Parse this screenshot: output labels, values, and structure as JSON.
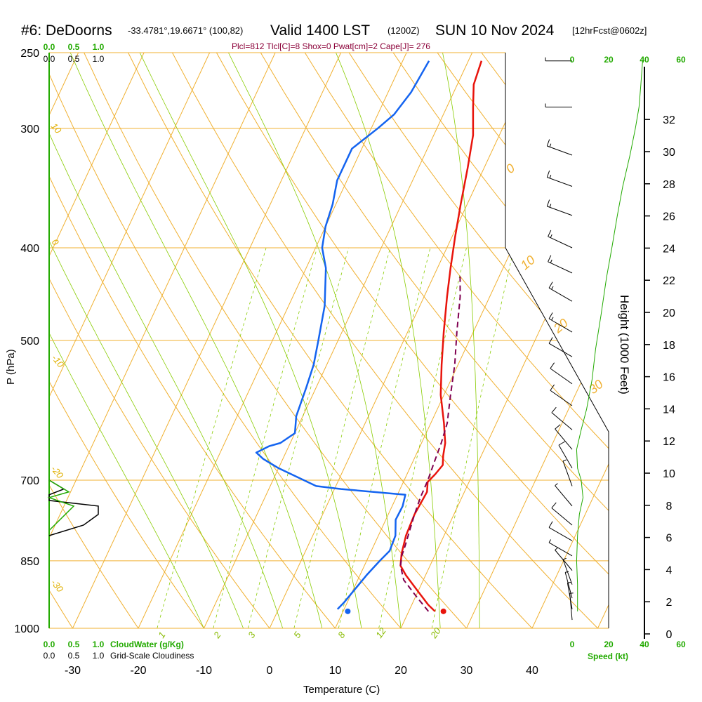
{
  "header": {
    "station": "#6: DeDoorns",
    "coords": "-33.4781°,19.6671° (100,82)",
    "valid": "Valid 1400 LST",
    "utc": "(1200Z)",
    "date": "SUN 10 Nov 2024",
    "fcst": "[12hrFcst@0602z]",
    "indices": "Plcl=812 Tlcl[C]=8 Shox=0 Pwat[cm]=2 Cape[J]= 276"
  },
  "axes": {
    "xlabel": "Temperature (C)",
    "ylabel": "P (hPa)",
    "right_label": "Height (1000 Feet)",
    "speed_label": "Speed (kt)",
    "cloudwater_label": "CloudWater (g/Kg)",
    "cloudiness_label": "Grid-Scale Cloudiness"
  },
  "colors": {
    "temperature": "#e8140c",
    "dewpoint": "#1464f0",
    "parcel": "#800050",
    "isotherm": "#f0b030",
    "mixing": "#88cc00",
    "height_profile": "#22aa00",
    "cloudwater": "#22aa00",
    "cloudiness": "#000000"
  },
  "chart_data": {
    "type": "line",
    "skew_t": true,
    "xlim": [
      -34,
      36
    ],
    "pressure_range": [
      1000,
      250
    ],
    "x_ticks": [
      "-30",
      "-20",
      "-10",
      "0",
      "10",
      "20",
      "30",
      "40"
    ],
    "x_tick_values": [
      -30,
      -20,
      -10,
      0,
      10,
      20,
      30,
      40
    ],
    "p_ticks": [
      "250",
      "300",
      "400",
      "500",
      "700",
      "850",
      "1000"
    ],
    "p_tick_values": [
      250,
      300,
      400,
      500,
      700,
      850,
      1000
    ],
    "height_ticks": [
      "0",
      "2",
      "4",
      "6",
      "8",
      "10",
      "12",
      "14",
      "16",
      "18",
      "20",
      "22",
      "24",
      "26",
      "28",
      "30",
      "32"
    ],
    "height_tick_values": [
      0,
      2,
      4,
      6,
      8,
      10,
      12,
      14,
      16,
      18,
      20,
      22,
      24,
      26,
      28,
      30,
      32
    ],
    "isotherm_labels": [
      "10",
      "20",
      "30",
      "0",
      "-10",
      "-20",
      "-30"
    ],
    "dry_adiabat_labels": [
      "10",
      "0",
      "-10",
      "-20",
      "-30"
    ],
    "mixing_ratio_labels": [
      "1",
      "2",
      "3",
      "5",
      "8",
      "12",
      "20"
    ],
    "series": [
      {
        "name": "Temperature",
        "points": [
          [
            24.0,
            960
          ],
          [
            22.5,
            945
          ],
          [
            20.0,
            915
          ],
          [
            17.0,
            880
          ],
          [
            15.5,
            860
          ],
          [
            14.8,
            835
          ],
          [
            14.2,
            800
          ],
          [
            14.0,
            760
          ],
          [
            14.3,
            720
          ],
          [
            13.7,
            703
          ],
          [
            14.3,
            690
          ],
          [
            14.8,
            675
          ],
          [
            14.2,
            660
          ],
          [
            13.6,
            640
          ],
          [
            12.0,
            610
          ],
          [
            9.5,
            570
          ],
          [
            7.5,
            530
          ],
          [
            5.5,
            490
          ],
          [
            3.5,
            450
          ],
          [
            2.0,
            420
          ],
          [
            0.5,
            390
          ],
          [
            -1.0,
            360
          ],
          [
            -2.5,
            330
          ],
          [
            -4.0,
            305
          ],
          [
            -6.0,
            285
          ],
          [
            -7.5,
            270
          ],
          [
            -8.0,
            255
          ]
        ]
      },
      {
        "name": "Dewpoint",
        "points": [
          [
            9.0,
            955
          ],
          [
            9.5,
            940
          ],
          [
            11.0,
            880
          ],
          [
            12.0,
            850
          ],
          [
            12.8,
            830
          ],
          [
            12.6,
            800
          ],
          [
            11.5,
            770
          ],
          [
            11.6,
            745
          ],
          [
            11.2,
            725
          ],
          [
            1.0,
            715
          ],
          [
            -3.0,
            710
          ],
          [
            -10.0,
            680
          ],
          [
            -13.0,
            665
          ],
          [
            -14.5,
            655
          ],
          [
            -13.0,
            645
          ],
          [
            -11.5,
            640
          ],
          [
            -10.0,
            625
          ],
          [
            -11.0,
            600
          ],
          [
            -11.5,
            560
          ],
          [
            -12.0,
            530
          ],
          [
            -13.0,
            500
          ],
          [
            -14.5,
            460
          ],
          [
            -17.0,
            420
          ],
          [
            -19.0,
            400
          ],
          [
            -20.0,
            380
          ],
          [
            -20.5,
            360
          ],
          [
            -21.5,
            340
          ],
          [
            -21.5,
            315
          ],
          [
            -19.0,
            300
          ],
          [
            -17.5,
            290
          ],
          [
            -16.5,
            275
          ],
          [
            -16.0,
            255
          ]
        ]
      },
      {
        "name": "Parcel",
        "points": [
          [
            23.0,
            960
          ],
          [
            20.0,
            925
          ],
          [
            17.0,
            890
          ],
          [
            15.5,
            860
          ],
          [
            15.0,
            840
          ],
          [
            14.8,
            820
          ],
          [
            14.4,
            790
          ],
          [
            14.0,
            760
          ],
          [
            13.7,
            730
          ],
          [
            13.6,
            700
          ],
          [
            13.3,
            670
          ],
          [
            13.0,
            640
          ],
          [
            12.5,
            610
          ],
          [
            11.0,
            570
          ],
          [
            9.5,
            530
          ],
          [
            7.5,
            490
          ],
          [
            5.5,
            450
          ],
          [
            3.8,
            425
          ]
        ]
      }
    ],
    "surface_temperature": 24.0,
    "surface_dewpoint": 9.0,
    "surface_pressure": 960,
    "wind_barbs": [
      {
        "p": 255,
        "speed": 5,
        "dir": 270
      },
      {
        "p": 285,
        "speed": 5,
        "dir": 270
      },
      {
        "p": 320,
        "speed": 15,
        "dir": 290
      },
      {
        "p": 345,
        "speed": 15,
        "dir": 290
      },
      {
        "p": 370,
        "speed": 15,
        "dir": 290
      },
      {
        "p": 400,
        "speed": 15,
        "dir": 295
      },
      {
        "p": 425,
        "speed": 15,
        "dir": 295
      },
      {
        "p": 455,
        "speed": 15,
        "dir": 300
      },
      {
        "p": 490,
        "speed": 15,
        "dir": 300
      },
      {
        "p": 520,
        "speed": 10,
        "dir": 300
      },
      {
        "p": 555,
        "speed": 10,
        "dir": 305
      },
      {
        "p": 585,
        "speed": 10,
        "dir": 305
      },
      {
        "p": 620,
        "speed": 10,
        "dir": 310
      },
      {
        "p": 650,
        "speed": 10,
        "dir": 320
      },
      {
        "p": 680,
        "speed": 10,
        "dir": 330
      },
      {
        "p": 710,
        "speed": 5,
        "dir": 340
      },
      {
        "p": 745,
        "speed": 5,
        "dir": 320
      },
      {
        "p": 780,
        "speed": 10,
        "dir": 310
      },
      {
        "p": 810,
        "speed": 10,
        "dir": 300
      },
      {
        "p": 840,
        "speed": 5,
        "dir": 300
      },
      {
        "p": 870,
        "speed": 5,
        "dir": 320
      },
      {
        "p": 900,
        "speed": 5,
        "dir": 340
      },
      {
        "p": 930,
        "speed": 5,
        "dir": 345
      },
      {
        "p": 955,
        "speed": 5,
        "dir": 350
      },
      {
        "p": 980,
        "speed": 5,
        "dir": 355
      }
    ],
    "cloudwater_scale": [
      "0.0",
      "0.5",
      "1.0"
    ],
    "cloudiness_scale": [
      "0.0",
      "0.5",
      "1.0"
    ],
    "speed_scale": [
      "0",
      "20",
      "40",
      "60"
    ],
    "speed_scale_values": [
      0,
      20,
      40,
      60
    ],
    "cloudiness_profile": [
      [
        0.0,
        700
      ],
      [
        0.3,
        715
      ],
      [
        0.0,
        725
      ],
      [
        0.0,
        735
      ],
      [
        1.0,
        745
      ],
      [
        1.0,
        760
      ],
      [
        0.7,
        780
      ],
      [
        0.0,
        800
      ]
    ],
    "cloudwater_profile": [
      [
        0.0,
        700
      ],
      [
        0.4,
        720
      ],
      [
        0.0,
        730
      ],
      [
        0.5,
        745
      ],
      [
        0.0,
        790
      ]
    ],
    "speed_profile": [
      [
        3,
        960
      ],
      [
        3,
        900
      ],
      [
        2.5,
        850
      ],
      [
        3,
        800
      ],
      [
        4,
        760
      ],
      [
        6,
        730
      ],
      [
        5,
        700
      ],
      [
        3,
        680
      ],
      [
        2.5,
        650
      ],
      [
        5,
        620
      ],
      [
        8,
        590
      ],
      [
        11,
        550
      ],
      [
        13,
        510
      ],
      [
        16,
        470
      ],
      [
        19,
        430
      ],
      [
        22,
        400
      ],
      [
        25,
        370
      ],
      [
        28,
        345
      ],
      [
        32,
        320
      ],
      [
        35,
        300
      ],
      [
        37,
        285
      ],
      [
        38,
        270
      ],
      [
        39,
        255
      ]
    ]
  }
}
